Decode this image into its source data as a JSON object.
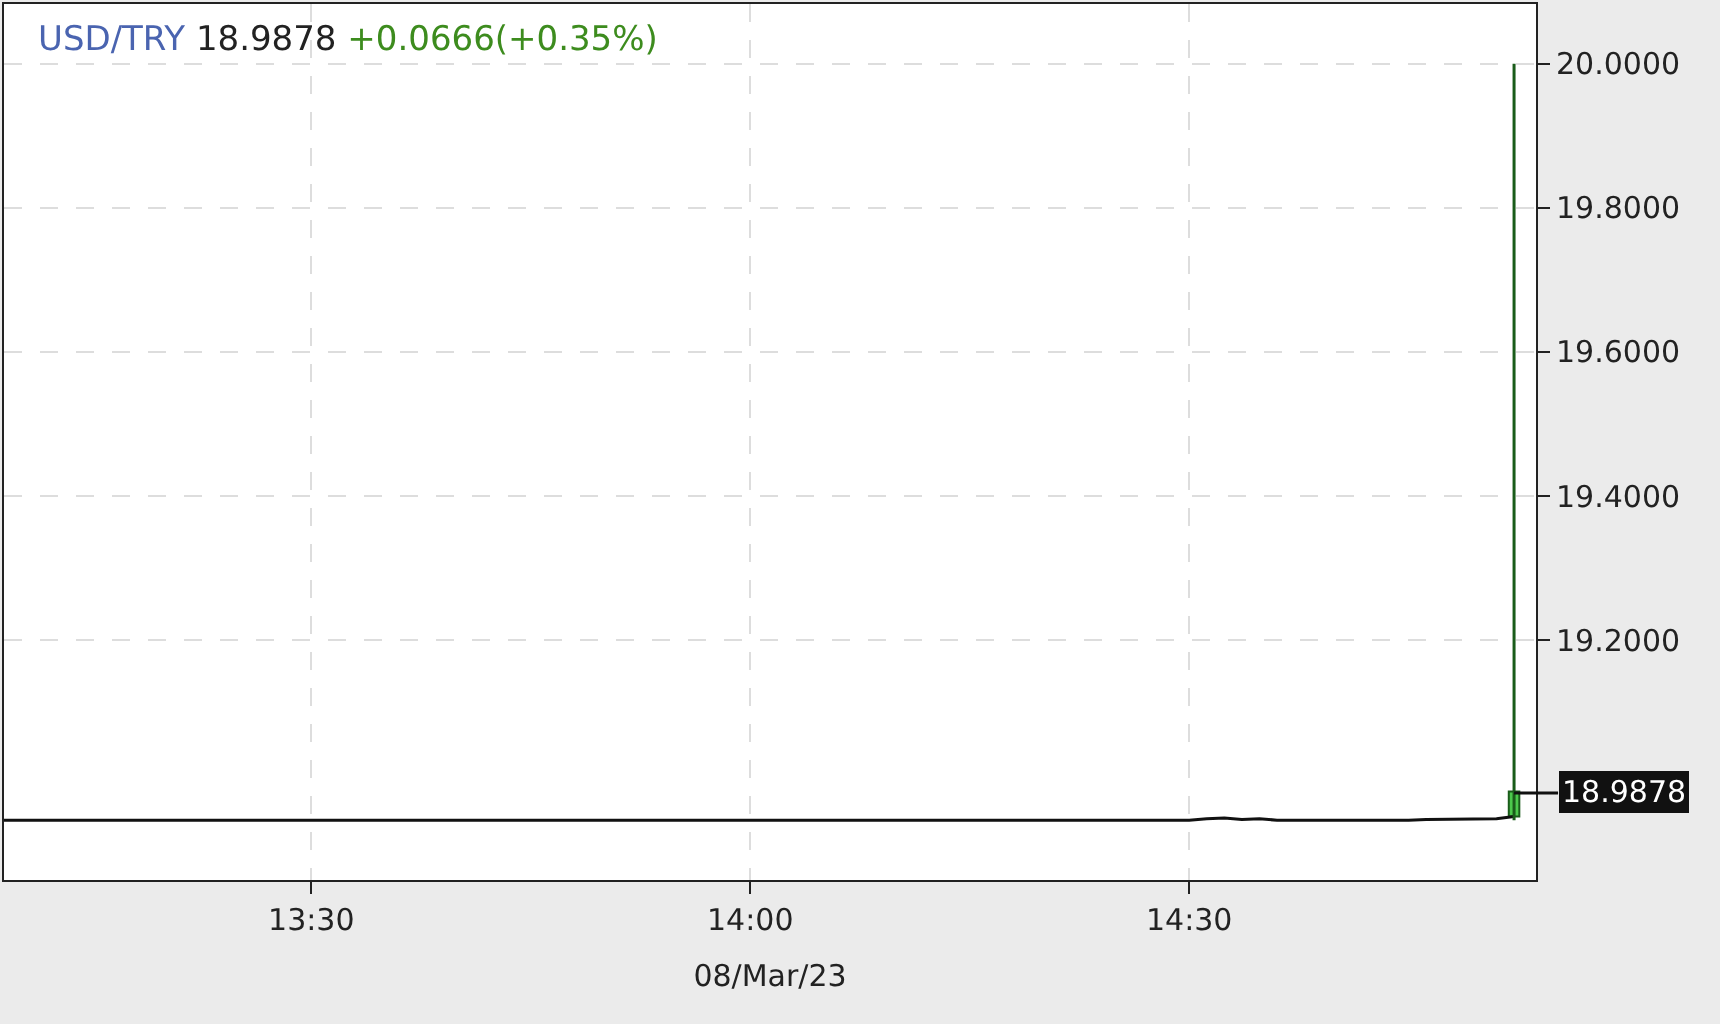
{
  "chart_data": {
    "type": "line",
    "title": "USD/TRY 18.9878 +0.0666(+0.35%)",
    "xlabel": "08/Mar/23",
    "xlim": [
      13.15,
      14.895
    ],
    "xticks": [
      {
        "value": 13.5,
        "label": "13:30"
      },
      {
        "value": 14,
        "label": "14:00"
      },
      {
        "value": 14.5,
        "label": "14:30"
      }
    ],
    "ylim": [
      18.867,
      20.083
    ],
    "yticks": [
      {
        "value": 19.2,
        "label": "19.2000"
      },
      {
        "value": 19.4,
        "label": "19.4000"
      },
      {
        "value": 19.6,
        "label": "19.6000"
      },
      {
        "value": 19.8,
        "label": "19.8000"
      },
      {
        "value": 20,
        "label": "20.0000"
      }
    ],
    "grid": true,
    "line_style": "solid",
    "marker": "none",
    "series": [
      {
        "color": "#111111",
        "x": [
          13.15,
          14.5,
          14.52,
          14.54,
          14.56,
          14.58,
          14.6,
          14.75,
          14.77,
          14.85,
          14.87
        ],
        "values": [
          18.95,
          18.95,
          18.952,
          18.953,
          18.951,
          18.952,
          18.95,
          18.95,
          18.951,
          18.952,
          18.955
        ]
      },
      {
        "type": "candlestick",
        "color": "#4cc94c",
        "x": [
          14.87
        ],
        "ohlc": [
          [
            18.955,
            20.0,
            18.95,
            18.99
          ]
        ]
      }
    ],
    "annotations": [
      {
        "text": "18.9878",
        "x": 14.87,
        "y": 18.9878
      }
    ]
  }
}
